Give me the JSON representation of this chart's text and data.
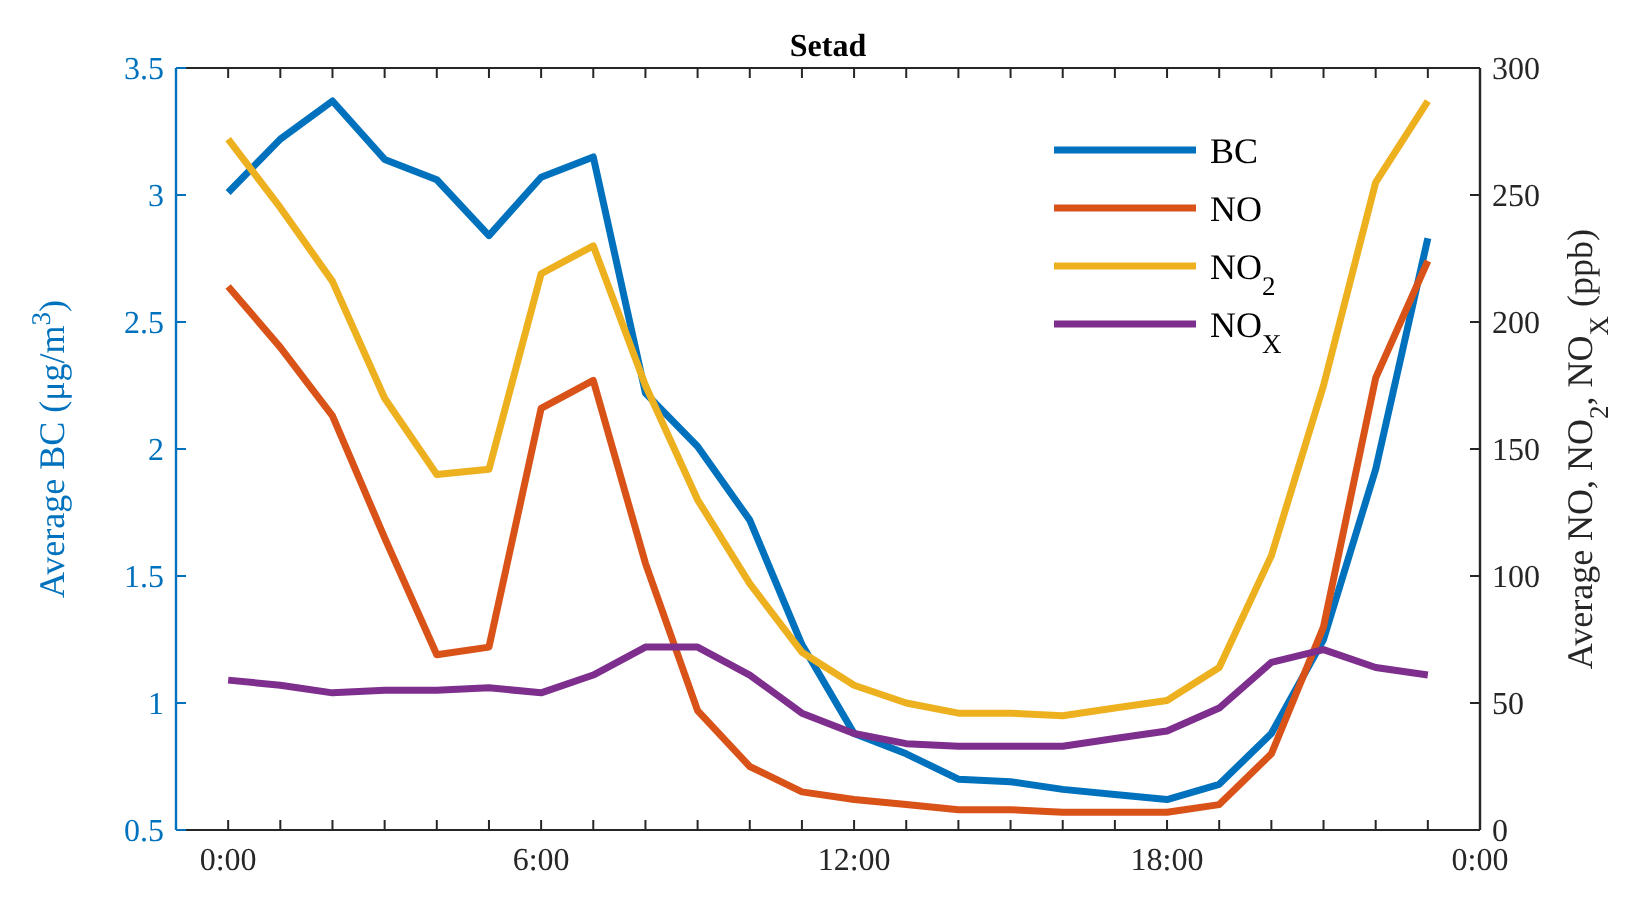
{
  "chart_data": {
    "type": "line",
    "title": "Setad",
    "ylabel": "Average BC (μg/m$^{3}$)",
    "y2label": "Average NO, NO$_{2}$, NO$_{X}$ (ppb)",
    "x": [
      0,
      1,
      2,
      3,
      4,
      5,
      6,
      7,
      8,
      9,
      10,
      11,
      12,
      13,
      14,
      15,
      16,
      17,
      18,
      19,
      20,
      21,
      22,
      23
    ],
    "xlim": [
      -1,
      24
    ],
    "xticks": [
      {
        "value": 0,
        "label": "0:00"
      },
      {
        "value": 1,
        "label": null
      },
      {
        "value": 2,
        "label": null
      },
      {
        "value": 3,
        "label": null
      },
      {
        "value": 4,
        "label": null
      },
      {
        "value": 5,
        "label": null
      },
      {
        "value": 6,
        "label": "6:00"
      },
      {
        "value": 7,
        "label": null
      },
      {
        "value": 8,
        "label": null
      },
      {
        "value": 9,
        "label": null
      },
      {
        "value": 10,
        "label": null
      },
      {
        "value": 11,
        "label": null
      },
      {
        "value": 12,
        "label": "12:00"
      },
      {
        "value": 13,
        "label": null
      },
      {
        "value": 14,
        "label": null
      },
      {
        "value": 15,
        "label": null
      },
      {
        "value": 16,
        "label": null
      },
      {
        "value": 17,
        "label": null
      },
      {
        "value": 18,
        "label": "18:00"
      },
      {
        "value": 19,
        "label": null
      },
      {
        "value": 20,
        "label": null
      },
      {
        "value": 21,
        "label": null
      },
      {
        "value": 22,
        "label": null
      },
      {
        "value": 23,
        "label": null
      },
      {
        "value": 24,
        "label": "0:00"
      }
    ],
    "ylim": [
      0.5,
      3.5
    ],
    "yticks": [
      0.5,
      1,
      1.5,
      2,
      2.5,
      3,
      3.5
    ],
    "y2lim": [
      0,
      300
    ],
    "y2ticks": [
      0,
      50,
      100,
      150,
      200,
      250,
      300
    ],
    "legend": "top right",
    "grid": false,
    "marker": "none",
    "line_style": "solid",
    "series": [
      {
        "name": "BC",
        "color": "#0072bd",
        "values": [
          3.01,
          3.22,
          3.37,
          3.14,
          3.06,
          2.84,
          3.07,
          3.15,
          2.22,
          2.01,
          1.72,
          1.23,
          0.88,
          0.8,
          0.7,
          0.69,
          0.66,
          0.64,
          0.62,
          0.68,
          0.88,
          1.25,
          1.92,
          2.83
        ]
      },
      {
        "name": "NO",
        "color": "#d95319",
        "axis": "y2",
        "values": [
          214,
          190,
          163,
          115,
          69,
          72,
          166,
          177,
          105,
          47,
          25,
          15,
          12,
          10,
          8,
          8,
          7,
          7,
          7,
          10,
          30,
          80,
          178,
          224
        ]
      },
      {
        "name": "NO$_{2}$",
        "color": "#edb120",
        "axis": "y2",
        "values": [
          272,
          245,
          216,
          170,
          140,
          142,
          219,
          230,
          175,
          130,
          97,
          70,
          57,
          50,
          46,
          46,
          45,
          48,
          51,
          64,
          108,
          175,
          255,
          287
        ]
      },
      {
        "name": "NO$_{X}$",
        "color": "#7e2f8e",
        "axis": "y2",
        "values": [
          59,
          57,
          54,
          55,
          55,
          56,
          54,
          61,
          72,
          72,
          61,
          46,
          38,
          34,
          33,
          33,
          33,
          36,
          39,
          48,
          66,
          71,
          64,
          61
        ]
      }
    ]
  }
}
